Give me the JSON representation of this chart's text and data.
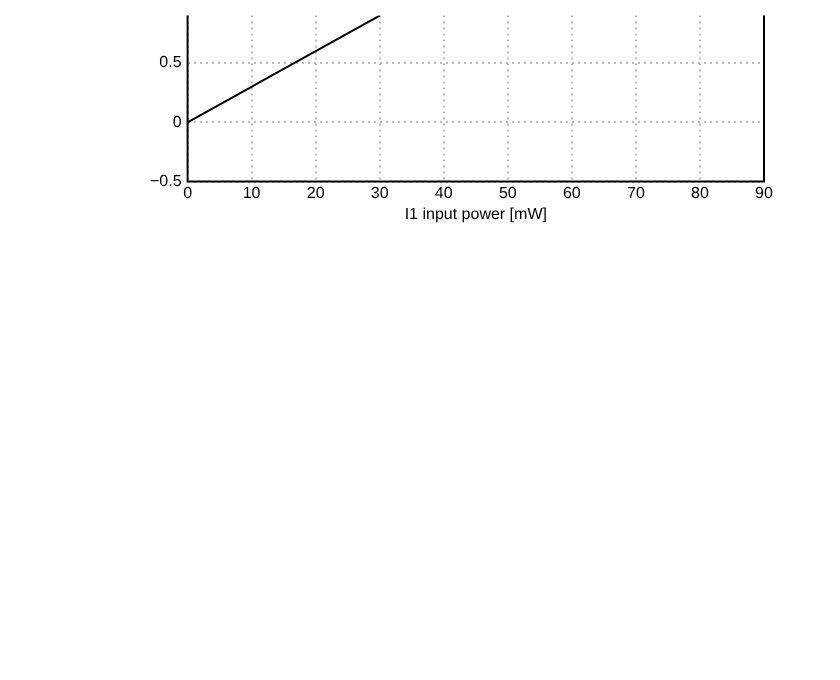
{
  "chart_data": {
    "type": "line",
    "xlabel": "I1 input power [mW]",
    "x": [
      0,
      30
    ],
    "series": [
      {
        "color": "#000000",
        "values": [
          0,
          0.9
        ]
      }
    ],
    "xlim": [
      0,
      90
    ],
    "xticks": [
      0,
      10,
      20,
      30,
      40,
      50,
      60,
      70,
      80,
      90
    ],
    "ylim": [
      -0.5,
      0.9
    ],
    "yticks": [
      -0.5,
      0,
      0.5
    ],
    "grid": true,
    "line_style": "solid",
    "marker": "none"
  }
}
